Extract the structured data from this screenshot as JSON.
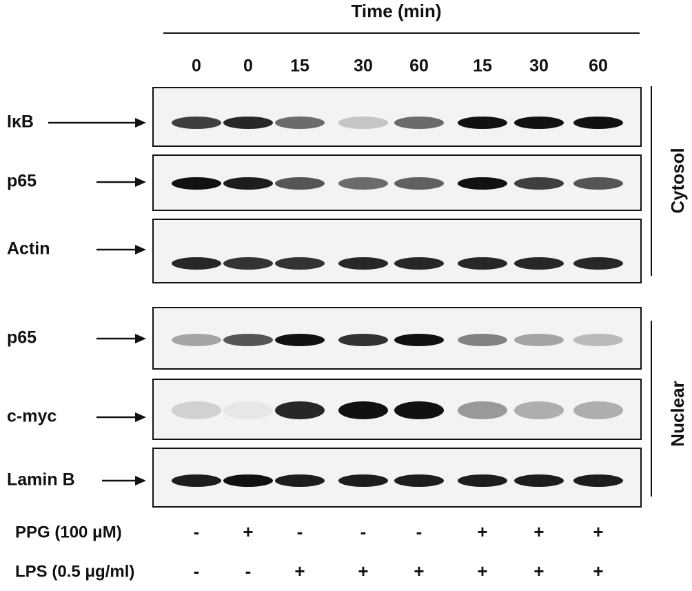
{
  "header": {
    "title": "Time (min)",
    "lanes": [
      "0",
      "0",
      "15",
      "30",
      "60",
      "15",
      "30",
      "60"
    ]
  },
  "blots": [
    {
      "label": "IκB"
    },
    {
      "label": "p65"
    },
    {
      "label": "Actin"
    },
    {
      "label": "p65"
    },
    {
      "label": "c-myc"
    },
    {
      "label": "Lamin B"
    }
  ],
  "groups": [
    {
      "label": "Cytosol"
    },
    {
      "label": "Nuclear"
    }
  ],
  "treatments": [
    {
      "label": "PPG (100 μM)",
      "signs": [
        "-",
        "+",
        "-",
        "-",
        "-",
        "+",
        "+",
        "+"
      ]
    },
    {
      "label": "LPS (0.5 μg/ml)",
      "signs": [
        "-",
        "-",
        "+",
        "+",
        "+",
        "+",
        "+",
        "+"
      ]
    }
  ]
}
